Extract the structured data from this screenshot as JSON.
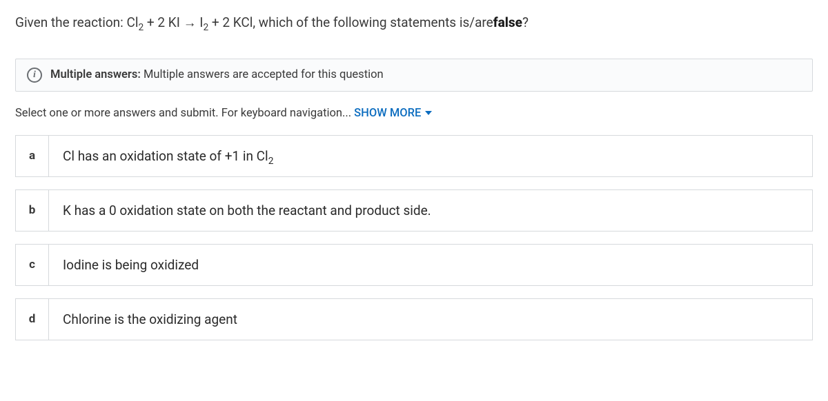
{
  "question": {
    "prefix": "Given the reaction: Cl",
    "sub1": "2",
    "mid1": " + 2 KI → I",
    "sub2": "2",
    "mid2": " + 2 KCl, which of the following statements is/are",
    "bold": "false",
    "suffix": "?"
  },
  "info": {
    "icon_glyph": "i",
    "label": "Multiple answers:",
    "text": " Multiple answers are accepted for this question"
  },
  "instructions": {
    "text": "Select one or more answers and submit. For keyboard navigation...",
    "show_more": "SHOW MORE"
  },
  "options": [
    {
      "key": "a",
      "text_pre": "Cl has an oxidation state of +1 in Cl",
      "sub": "2",
      "text_post": ""
    },
    {
      "key": "b",
      "text_pre": "K has a 0 oxidation state on both the reactant and product side.",
      "sub": "",
      "text_post": ""
    },
    {
      "key": "c",
      "text_pre": "Iodine is being oxidized",
      "sub": "",
      "text_post": ""
    },
    {
      "key": "d",
      "text_pre": "Chlorine is the oxidizing agent",
      "sub": "",
      "text_post": ""
    }
  ],
  "style": {
    "border_color": "#d6d9dc",
    "banner_bg": "#fafbfc",
    "link_color": "#0b6cbf",
    "text_color": "#3a3a3a",
    "option_fontsize": 19,
    "question_fontsize": 19
  }
}
